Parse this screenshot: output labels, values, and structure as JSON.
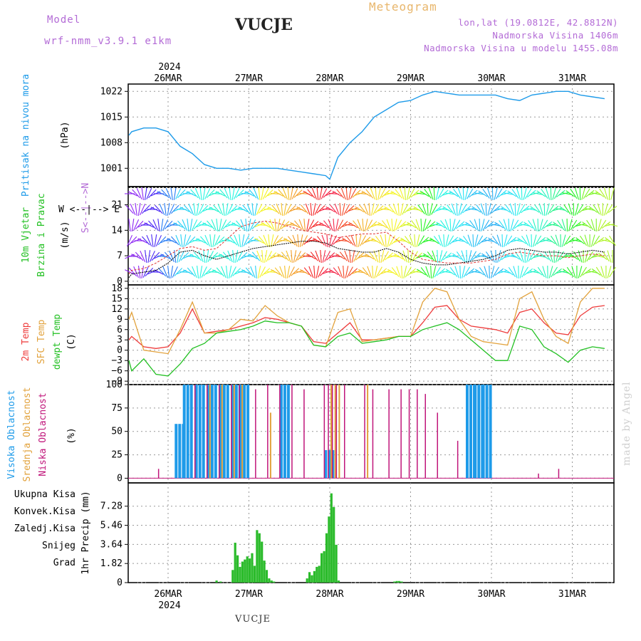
{
  "header": {
    "model_label": "Model",
    "model_value": "wrf-nmm_v3.9.1 e1km",
    "station": "VUCJE",
    "title": "Meteogram",
    "lonlat": "lon,lat (19.0812E, 42.8812N)",
    "elev": "Nadmorska Visina 1406m",
    "elev_model": "Nadmorska Visina u modelu 1455.08m",
    "footer_station": "VUCJE",
    "credit": "made by Angel"
  },
  "colors": {
    "pressure": "#1e9be9",
    "temp2m": "#ee3a3a",
    "sfc": "#e2a23c",
    "dew": "#22c022",
    "cloud_high": "#1e9be9",
    "cloud_mid": "#e2a23c",
    "cloud_low": "#c0157a",
    "precip": "#2bbb2b",
    "label_purple": "#b36bd6",
    "legend_conv": "#ee3a3a",
    "legend_frz": "#f08030",
    "legend_snow": "#4040e0",
    "legend_hail": "#22c0c0"
  },
  "time_axis": {
    "top_year": "2024",
    "bottom_year": "2024",
    "days": [
      "26MAR",
      "27MAR",
      "28MAR",
      "29MAR",
      "30MAR",
      "31MAR"
    ],
    "day_index": [
      0,
      1,
      2,
      3,
      4,
      5
    ]
  },
  "panels": {
    "pressure": {
      "ylabel": "Pritisak na nivou mora",
      "unit": "(hPa)"
    },
    "wind": {
      "ylabel1": "10m Vjetar",
      "ylabel2": "Brzina i Pravac",
      "unit": "(m/s)",
      "compass": "W <--|--> E",
      "compass2": "S<--|-->N"
    },
    "temp": {
      "l1": "2m Temp",
      "l2": "SFC Temp",
      "l3": "dewpt Temp",
      "unit": "(C)"
    },
    "cloud": {
      "l1": "Visoka Oblacnost",
      "l2": "Srednja Oblacnost",
      "l3": "Niska Oblacnost",
      "unit": "(%)"
    },
    "precip": {
      "unit": "1hr Precip (mm)",
      "legend": [
        "Ukupna Kisa",
        "Konvek.Kisa",
        "Zaledj.Kisa",
        "Snijeg",
        "Grad"
      ]
    }
  },
  "chart_data": [
    {
      "type": "line",
      "title": "",
      "ylabel": "Pritisak na nivou mora (hPa)",
      "ylim": [
        996,
        1024
      ],
      "yticks": [
        1001,
        1008,
        1015,
        1022
      ],
      "x": [
        -0.6,
        -0.45,
        -0.3,
        -0.15,
        0,
        0.15,
        0.3,
        0.45,
        0.6,
        0.75,
        0.9,
        1.05,
        1.2,
        1.35,
        1.5,
        1.65,
        1.8,
        1.95,
        2.0,
        2.1,
        2.25,
        2.4,
        2.55,
        2.7,
        2.85,
        3.0,
        3.15,
        3.3,
        3.45,
        3.6,
        3.75,
        3.9,
        4.05,
        4.2,
        4.35,
        4.5,
        4.65,
        4.8,
        4.95,
        5.1,
        5.25,
        5.4
      ],
      "series": [
        {
          "values": [
            1010,
            1011,
            1012,
            1012,
            1011,
            1007,
            1005,
            1002,
            1001,
            1001,
            1000.5,
            1001,
            1001,
            1001,
            1000.5,
            1000,
            999.5,
            999,
            998,
            1004,
            1008,
            1011,
            1015,
            1017,
            1019,
            1019.5,
            1021,
            1022,
            1021.5,
            1021,
            1021,
            1021,
            1021,
            1020,
            1019.5,
            1021,
            1021.5,
            1022,
            1022,
            1021,
            1020.5,
            1020
          ]
        }
      ]
    },
    {
      "type": "line",
      "title": "",
      "ylabel": "10m Vjetar Brzina i Pravac (m/s)",
      "ylim": [
        -1,
        26
      ],
      "yticks": [
        0,
        7,
        14,
        21
      ],
      "x": [
        -0.6,
        -0.45,
        -0.3,
        -0.15,
        0,
        0.15,
        0.3,
        0.45,
        0.6,
        0.75,
        0.9,
        1.05,
        1.2,
        1.35,
        1.5,
        1.65,
        1.8,
        1.95,
        2.1,
        2.25,
        2.4,
        2.55,
        2.7,
        2.85,
        3.0,
        3.15,
        3.3,
        3.45,
        3.6,
        3.75,
        3.9,
        4.05,
        4.2,
        4.35,
        4.5,
        4.65,
        4.8,
        4.95,
        5.1,
        5.25,
        5.4
      ],
      "series": [
        {
          "name": "",
          "values": [
            1,
            2,
            2.5,
            3,
            5,
            8,
            8.5,
            7,
            6,
            7,
            8,
            9,
            9.5,
            10,
            10.5,
            11,
            11,
            10.5,
            9,
            8.5,
            8,
            8,
            9,
            8,
            6,
            5,
            4.5,
            4.5,
            5,
            5.5,
            6,
            7,
            8.5,
            9,
            8.5,
            8,
            8,
            7.5,
            8,
            8.5,
            8
          ]
        },
        {
          "name": "",
          "values": [
            2,
            3,
            3.5,
            5,
            7,
            9,
            9.5,
            8.5,
            9,
            12,
            15,
            16,
            16.5,
            16,
            15,
            14,
            13.5,
            13,
            12,
            12.5,
            13,
            13,
            13.5,
            11,
            8,
            6,
            5.5,
            5,
            5,
            5,
            5.5,
            6,
            7.5,
            8,
            7.5,
            7,
            7,
            6.5,
            7,
            7.5,
            7
          ]
        }
      ]
    },
    {
      "type": "line",
      "title": "",
      "ylabel": "(C)",
      "ylim": [
        -10,
        19
      ],
      "yticks": [
        -9,
        -6,
        -3,
        0,
        3,
        6,
        9,
        12,
        15,
        18
      ],
      "x": [
        -0.6,
        -0.45,
        -0.3,
        -0.15,
        0,
        0.15,
        0.3,
        0.45,
        0.6,
        0.75,
        0.9,
        1.05,
        1.2,
        1.35,
        1.5,
        1.65,
        1.8,
        1.95,
        2.1,
        2.25,
        2.4,
        2.55,
        2.7,
        2.85,
        3.0,
        3.15,
        3.3,
        3.45,
        3.6,
        3.75,
        3.9,
        4.05,
        4.2,
        4.35,
        4.5,
        4.65,
        4.8,
        4.95,
        5.1,
        5.25,
        5.4
      ],
      "series": [
        {
          "name": "2m Temp",
          "values": [
            3,
            4,
            1,
            0.5,
            1,
            5,
            12,
            5,
            5.5,
            6,
            7,
            8,
            9.5,
            9,
            8,
            7,
            2.5,
            2,
            5,
            8,
            3,
            3,
            3.5,
            4,
            4,
            8,
            12.5,
            13,
            9,
            7,
            6.5,
            6,
            5,
            11,
            12,
            8,
            5,
            4.5,
            10,
            12.5,
            13
          ]
        },
        {
          "name": "SFC Temp",
          "values": [
            9,
            11,
            0,
            -0.5,
            -1,
            6,
            14,
            5,
            5,
            6,
            9,
            8.5,
            13,
            10,
            8,
            7,
            1.5,
            1,
            11,
            12,
            2.5,
            3,
            3.5,
            4,
            4,
            14,
            18,
            17,
            9,
            4,
            2.5,
            2,
            1.5,
            15,
            17,
            9,
            4,
            2,
            14,
            18,
            18
          ]
        },
        {
          "name": "dewpt Temp",
          "values": [
            -3,
            -6,
            -2.5,
            -7,
            -7.5,
            -4,
            0.5,
            2,
            5,
            5.5,
            6,
            7,
            8.5,
            8,
            8,
            7,
            1.5,
            1,
            4,
            5,
            2,
            2.5,
            3,
            4,
            4,
            6,
            7,
            8,
            6,
            3,
            0,
            -3,
            -3,
            7,
            6,
            1,
            -1,
            -3.5,
            0,
            1,
            0.5
          ]
        }
      ]
    },
    {
      "type": "bar",
      "title": "",
      "ylabel": "(%)",
      "ylim": [
        -5,
        100
      ],
      "yticks": [
        0,
        25,
        50,
        75,
        100
      ],
      "x": [
        -0.1,
        0.1,
        0.2,
        0.35,
        0.5,
        0.65,
        0.8,
        0.9,
        1.1,
        1.25,
        1.4,
        1.55,
        1.7,
        1.95,
        2.0,
        2.05,
        2.1,
        2.2,
        2.45,
        2.55,
        2.75,
        2.9,
        3.0,
        3.1,
        3.2,
        3.35,
        3.6,
        3.7,
        3.8,
        3.9,
        4.6,
        4.85
      ],
      "series": [
        {
          "name": "Visoka Oblacnost",
          "values": [
            0,
            58,
            100,
            100,
            100,
            100,
            100,
            100,
            0,
            0,
            100,
            0,
            0,
            30,
            0,
            0,
            0,
            0,
            0,
            0,
            0,
            0,
            0,
            0,
            0,
            0,
            0,
            100,
            100,
            100,
            0,
            0
          ]
        },
        {
          "name": "Srednja Oblacnost",
          "values": [
            0,
            0,
            0,
            0,
            100,
            100,
            100,
            100,
            0,
            70,
            0,
            0,
            0,
            0,
            100,
            100,
            100,
            0,
            100,
            0,
            0,
            0,
            0,
            0,
            0,
            0,
            0,
            0,
            0,
            0,
            0,
            0
          ]
        },
        {
          "name": "Niska Oblacnost",
          "values": [
            10,
            0,
            0,
            100,
            100,
            100,
            100,
            100,
            95,
            100,
            100,
            100,
            95,
            100,
            100,
            100,
            100,
            100,
            100,
            95,
            95,
            95,
            95,
            95,
            90,
            70,
            40,
            0,
            0,
            0,
            5,
            10
          ]
        }
      ]
    },
    {
      "type": "bar",
      "title": "",
      "ylabel": "1hr Precip (mm)",
      "ylim": [
        0,
        9.5
      ],
      "yticks": [
        0,
        1.82,
        3.64,
        5.46,
        7.28
      ],
      "x": [
        0.6,
        0.65,
        0.8,
        0.83,
        0.86,
        0.89,
        0.92,
        0.95,
        0.98,
        1.01,
        1.04,
        1.07,
        1.1,
        1.13,
        1.16,
        1.19,
        1.22,
        1.25,
        1.28,
        1.31,
        1.72,
        1.75,
        1.78,
        1.81,
        1.84,
        1.87,
        1.9,
        1.93,
        1.96,
        1.99,
        2.02,
        2.05,
        2.08,
        2.11,
        2.8,
        2.83,
        2.86,
        2.89
      ],
      "series": [
        {
          "name": "Ukupna Kisa",
          "values": [
            0.2,
            0.1,
            1.2,
            3.8,
            2.6,
            1.5,
            2.0,
            2.2,
            2.5,
            2.3,
            2.8,
            1.6,
            5.0,
            4.7,
            3.9,
            2.1,
            1.2,
            0.4,
            0.2,
            0.1,
            0.4,
            1.0,
            0.7,
            1.1,
            1.5,
            1.6,
            2.8,
            3.0,
            4.7,
            6.3,
            8.5,
            7.2,
            3.6,
            0.2,
            0.1,
            0.15,
            0.15,
            0.1
          ]
        }
      ]
    }
  ]
}
